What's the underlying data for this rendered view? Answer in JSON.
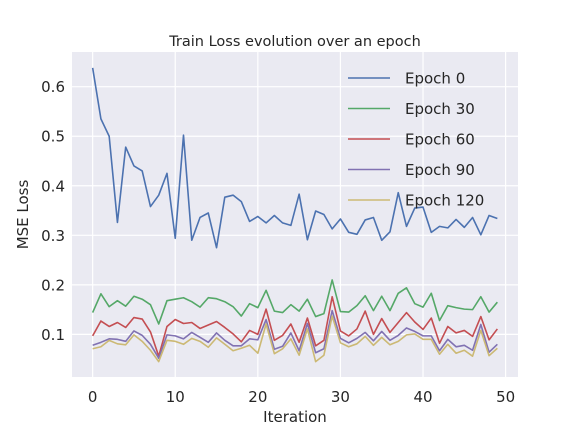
{
  "chart_data": {
    "type": "line",
    "title": "Train Loss evolution over an epoch",
    "xlabel": "Iteration",
    "ylabel": "MSE Loss",
    "xlim": [
      -2.5,
      51.5
    ],
    "ylim": [
      0.014,
      0.67
    ],
    "xticks": [
      0,
      10,
      20,
      30,
      40,
      50
    ],
    "yticks": [
      0.1,
      0.2,
      0.3,
      0.4,
      0.5,
      0.6
    ],
    "ytick_labels": [
      "0.1",
      "0.2",
      "0.3",
      "0.4",
      "0.5",
      "0.6"
    ],
    "grid": true,
    "legend_position": "upper right",
    "x": [
      0,
      1,
      2,
      3,
      4,
      5,
      6,
      7,
      8,
      9,
      10,
      11,
      12,
      13,
      14,
      15,
      16,
      17,
      18,
      19,
      20,
      21,
      22,
      23,
      24,
      25,
      26,
      27,
      28,
      29,
      30,
      31,
      32,
      33,
      34,
      35,
      36,
      37,
      38,
      39,
      40,
      41,
      42,
      43,
      44,
      45,
      46,
      47,
      48,
      49
    ],
    "series": [
      {
        "name": "Epoch 0",
        "color": "#4c72b0",
        "values": [
          0.638,
          0.535,
          0.5,
          0.326,
          0.478,
          0.44,
          0.43,
          0.358,
          0.381,
          0.425,
          0.294,
          0.502,
          0.29,
          0.336,
          0.345,
          0.275,
          0.377,
          0.381,
          0.368,
          0.328,
          0.338,
          0.325,
          0.34,
          0.325,
          0.32,
          0.383,
          0.291,
          0.349,
          0.342,
          0.313,
          0.333,
          0.306,
          0.302,
          0.331,
          0.336,
          0.29,
          0.307,
          0.386,
          0.318,
          0.355,
          0.357,
          0.306,
          0.318,
          0.315,
          0.332,
          0.316,
          0.336,
          0.301,
          0.34,
          0.334
        ]
      },
      {
        "name": "Epoch 30",
        "color": "#55a868",
        "values": [
          0.144,
          0.182,
          0.156,
          0.168,
          0.157,
          0.177,
          0.171,
          0.16,
          0.121,
          0.168,
          0.171,
          0.174,
          0.166,
          0.155,
          0.174,
          0.172,
          0.166,
          0.156,
          0.137,
          0.162,
          0.154,
          0.189,
          0.147,
          0.144,
          0.16,
          0.147,
          0.171,
          0.136,
          0.142,
          0.21,
          0.146,
          0.145,
          0.158,
          0.178,
          0.148,
          0.177,
          0.148,
          0.183,
          0.194,
          0.162,
          0.155,
          0.183,
          0.128,
          0.158,
          0.154,
          0.151,
          0.15,
          0.176,
          0.145,
          0.165
        ]
      },
      {
        "name": "Epoch 60",
        "color": "#c44e52",
        "values": [
          0.097,
          0.127,
          0.116,
          0.124,
          0.114,
          0.134,
          0.131,
          0.105,
          0.056,
          0.116,
          0.13,
          0.122,
          0.124,
          0.112,
          0.119,
          0.126,
          0.114,
          0.101,
          0.085,
          0.108,
          0.1,
          0.151,
          0.088,
          0.098,
          0.121,
          0.084,
          0.133,
          0.077,
          0.088,
          0.176,
          0.107,
          0.097,
          0.111,
          0.147,
          0.1,
          0.132,
          0.104,
          0.124,
          0.144,
          0.125,
          0.11,
          0.133,
          0.082,
          0.116,
          0.103,
          0.108,
          0.096,
          0.136,
          0.089,
          0.111
        ]
      },
      {
        "name": "Epoch 90",
        "color": "#8172b2",
        "values": [
          0.078,
          0.084,
          0.091,
          0.09,
          0.086,
          0.107,
          0.098,
          0.08,
          0.052,
          0.099,
          0.097,
          0.091,
          0.104,
          0.094,
          0.084,
          0.103,
          0.088,
          0.077,
          0.077,
          0.091,
          0.089,
          0.13,
          0.07,
          0.076,
          0.103,
          0.067,
          0.122,
          0.063,
          0.071,
          0.148,
          0.092,
          0.083,
          0.092,
          0.104,
          0.087,
          0.106,
          0.088,
          0.098,
          0.113,
          0.106,
          0.097,
          0.097,
          0.067,
          0.09,
          0.075,
          0.078,
          0.068,
          0.12,
          0.064,
          0.08
        ]
      },
      {
        "name": "Epoch 120",
        "color": "#ccb974",
        "values": [
          0.071,
          0.075,
          0.088,
          0.081,
          0.079,
          0.099,
          0.086,
          0.068,
          0.045,
          0.088,
          0.086,
          0.08,
          0.092,
          0.086,
          0.074,
          0.093,
          0.08,
          0.067,
          0.072,
          0.078,
          0.062,
          0.121,
          0.061,
          0.071,
          0.091,
          0.058,
          0.111,
          0.045,
          0.058,
          0.137,
          0.083,
          0.075,
          0.081,
          0.096,
          0.078,
          0.094,
          0.079,
          0.086,
          0.099,
          0.101,
          0.09,
          0.09,
          0.06,
          0.08,
          0.062,
          0.068,
          0.056,
          0.108,
          0.057,
          0.072
        ]
      }
    ]
  }
}
